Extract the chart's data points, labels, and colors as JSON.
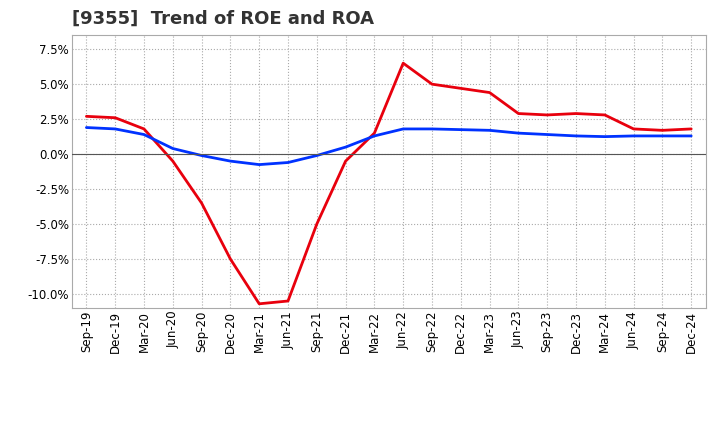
{
  "title": "[9355]  Trend of ROE and ROA",
  "labels": [
    "Sep-19",
    "Dec-19",
    "Mar-20",
    "Jun-20",
    "Sep-20",
    "Dec-20",
    "Mar-21",
    "Jun-21",
    "Sep-21",
    "Dec-21",
    "Mar-22",
    "Jun-22",
    "Sep-22",
    "Dec-22",
    "Mar-23",
    "Jun-23",
    "Sep-23",
    "Dec-23",
    "Mar-24",
    "Jun-24",
    "Sep-24",
    "Dec-24"
  ],
  "ROE": [
    2.7,
    2.6,
    1.8,
    -0.5,
    -3.5,
    -7.5,
    -10.7,
    -10.5,
    -5.0,
    -0.5,
    1.5,
    6.5,
    5.0,
    4.7,
    4.4,
    2.9,
    2.8,
    2.9,
    2.8,
    1.8,
    1.7,
    1.8
  ],
  "ROA": [
    1.9,
    1.8,
    1.4,
    0.4,
    -0.1,
    -0.5,
    -0.75,
    -0.6,
    -0.1,
    0.5,
    1.3,
    1.8,
    1.8,
    1.75,
    1.7,
    1.5,
    1.4,
    1.3,
    1.25,
    1.3,
    1.3,
    1.3
  ],
  "roe_color": "#e8000d",
  "roa_color": "#0032ff",
  "line_width": 2.0,
  "bg_color": "#ffffff",
  "plot_bg_color": "#ffffff",
  "grid_color": "#aaaaaa",
  "ylim": [
    -11.0,
    8.5
  ],
  "yticks": [
    -10.0,
    -7.5,
    -5.0,
    -2.5,
    0.0,
    2.5,
    5.0,
    7.5
  ],
  "title_fontsize": 13,
  "tick_fontsize": 8.5,
  "legend_fontsize": 10
}
